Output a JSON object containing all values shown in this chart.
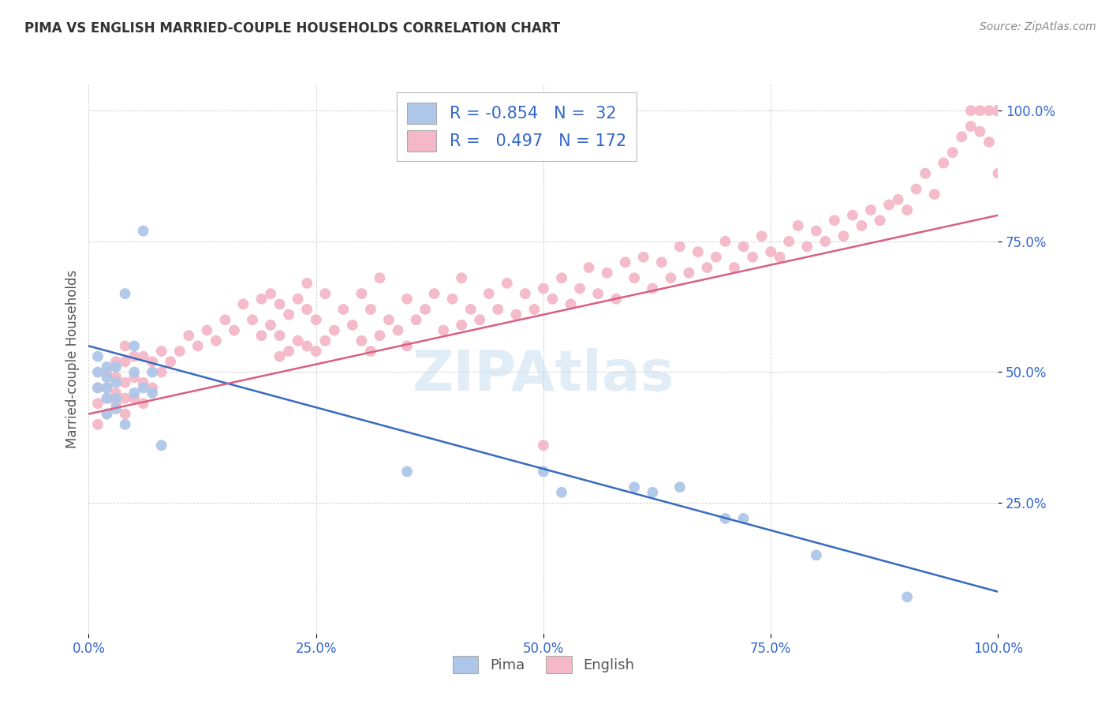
{
  "title": "PIMA VS ENGLISH MARRIED-COUPLE HOUSEHOLDS CORRELATION CHART",
  "source": "Source: ZipAtlas.com",
  "ylabel": "Married-couple Households",
  "watermark": "ZIPAtlas",
  "pima_R": -0.854,
  "pima_N": 32,
  "english_R": 0.497,
  "english_N": 172,
  "pima_color": "#aec6e8",
  "english_color": "#f4b8c8",
  "pima_line_color": "#3a6abf",
  "english_line_color": "#d96080",
  "pima_x": [
    0.01,
    0.01,
    0.01,
    0.02,
    0.02,
    0.02,
    0.02,
    0.02,
    0.03,
    0.03,
    0.03,
    0.03,
    0.04,
    0.04,
    0.05,
    0.05,
    0.05,
    0.06,
    0.06,
    0.07,
    0.07,
    0.08,
    0.35,
    0.5,
    0.52,
    0.6,
    0.62,
    0.65,
    0.7,
    0.72,
    0.8,
    0.9
  ],
  "pima_y": [
    0.47,
    0.5,
    0.53,
    0.45,
    0.47,
    0.49,
    0.51,
    0.42,
    0.48,
    0.51,
    0.45,
    0.43,
    0.4,
    0.65,
    0.46,
    0.5,
    0.55,
    0.77,
    0.47,
    0.46,
    0.5,
    0.36,
    0.31,
    0.31,
    0.27,
    0.28,
    0.27,
    0.28,
    0.22,
    0.22,
    0.15,
    0.07
  ],
  "english_x": [
    0.01,
    0.01,
    0.01,
    0.02,
    0.02,
    0.02,
    0.02,
    0.03,
    0.03,
    0.03,
    0.03,
    0.04,
    0.04,
    0.04,
    0.04,
    0.04,
    0.05,
    0.05,
    0.05,
    0.06,
    0.06,
    0.06,
    0.07,
    0.07,
    0.08,
    0.08,
    0.09,
    0.1,
    0.11,
    0.12,
    0.13,
    0.14,
    0.15,
    0.16,
    0.17,
    0.18,
    0.19,
    0.19,
    0.2,
    0.2,
    0.21,
    0.21,
    0.21,
    0.22,
    0.22,
    0.23,
    0.23,
    0.24,
    0.24,
    0.24,
    0.25,
    0.25,
    0.26,
    0.26,
    0.27,
    0.28,
    0.29,
    0.3,
    0.3,
    0.31,
    0.31,
    0.32,
    0.32,
    0.33,
    0.34,
    0.35,
    0.35,
    0.36,
    0.37,
    0.38,
    0.39,
    0.4,
    0.41,
    0.41,
    0.42,
    0.43,
    0.44,
    0.45,
    0.46,
    0.47,
    0.48,
    0.49,
    0.5,
    0.5,
    0.51,
    0.52,
    0.53,
    0.54,
    0.55,
    0.56,
    0.57,
    0.58,
    0.59,
    0.6,
    0.61,
    0.62,
    0.63,
    0.64,
    0.65,
    0.66,
    0.67,
    0.68,
    0.69,
    0.7,
    0.71,
    0.72,
    0.73,
    0.74,
    0.75,
    0.76,
    0.77,
    0.78,
    0.79,
    0.8,
    0.81,
    0.82,
    0.83,
    0.84,
    0.85,
    0.86,
    0.87,
    0.88,
    0.89,
    0.9,
    0.91,
    0.92,
    0.93,
    0.94,
    0.95,
    0.96,
    0.97,
    0.97,
    0.98,
    0.98,
    0.99,
    0.99,
    1.0,
    1.0,
    1.0,
    1.0,
    1.0,
    1.0,
    1.0,
    1.0,
    1.0,
    1.0,
    1.0,
    1.0,
    1.0,
    1.0,
    1.0,
    1.0,
    1.0,
    1.0,
    1.0,
    1.0,
    1.0,
    1.0,
    1.0,
    1.0,
    1.0,
    1.0,
    1.0,
    1.0,
    1.0,
    1.0,
    1.0,
    1.0,
    1.0,
    1.0,
    1.0
  ],
  "english_y": [
    0.4,
    0.44,
    0.47,
    0.42,
    0.45,
    0.47,
    0.5,
    0.44,
    0.46,
    0.49,
    0.52,
    0.42,
    0.45,
    0.48,
    0.52,
    0.55,
    0.45,
    0.49,
    0.53,
    0.44,
    0.48,
    0.53,
    0.47,
    0.52,
    0.5,
    0.54,
    0.52,
    0.54,
    0.57,
    0.55,
    0.58,
    0.56,
    0.6,
    0.58,
    0.63,
    0.6,
    0.57,
    0.64,
    0.59,
    0.65,
    0.53,
    0.57,
    0.63,
    0.54,
    0.61,
    0.56,
    0.64,
    0.55,
    0.62,
    0.67,
    0.54,
    0.6,
    0.56,
    0.65,
    0.58,
    0.62,
    0.59,
    0.56,
    0.65,
    0.54,
    0.62,
    0.57,
    0.68,
    0.6,
    0.58,
    0.55,
    0.64,
    0.6,
    0.62,
    0.65,
    0.58,
    0.64,
    0.59,
    0.68,
    0.62,
    0.6,
    0.65,
    0.62,
    0.67,
    0.61,
    0.65,
    0.62,
    0.36,
    0.66,
    0.64,
    0.68,
    0.63,
    0.66,
    0.7,
    0.65,
    0.69,
    0.64,
    0.71,
    0.68,
    0.72,
    0.66,
    0.71,
    0.68,
    0.74,
    0.69,
    0.73,
    0.7,
    0.72,
    0.75,
    0.7,
    0.74,
    0.72,
    0.76,
    0.73,
    0.72,
    0.75,
    0.78,
    0.74,
    0.77,
    0.75,
    0.79,
    0.76,
    0.8,
    0.78,
    0.81,
    0.79,
    0.82,
    0.83,
    0.81,
    0.85,
    0.88,
    0.84,
    0.9,
    0.92,
    0.95,
    0.97,
    1.0,
    0.96,
    1.0,
    0.94,
    1.0,
    1.0,
    1.0,
    1.0,
    1.0,
    1.0,
    1.0,
    1.0,
    1.0,
    1.0,
    1.0,
    1.0,
    1.0,
    1.0,
    1.0,
    1.0,
    1.0,
    1.0,
    1.0,
    1.0,
    1.0,
    1.0,
    1.0,
    1.0,
    1.0,
    1.0,
    1.0,
    1.0,
    1.0,
    1.0,
    1.0,
    1.0,
    1.0,
    1.0,
    1.0,
    0.88
  ],
  "xlim": [
    0.0,
    1.0
  ],
  "ylim": [
    0.0,
    1.05
  ],
  "xticks": [
    0.0,
    0.25,
    0.5,
    0.75,
    1.0
  ],
  "yticks": [
    0.25,
    0.5,
    0.75,
    1.0
  ],
  "xticklabels": [
    "0.0%",
    "25.0%",
    "50.0%",
    "75.0%",
    "100.0%"
  ],
  "yticklabels": [
    "25.0%",
    "50.0%",
    "75.0%",
    "100.0%"
  ],
  "pima_line_x0": 0.0,
  "pima_line_y0": 0.55,
  "pima_line_x1": 1.0,
  "pima_line_y1": 0.08,
  "english_line_x0": 0.0,
  "english_line_y0": 0.42,
  "english_line_x1": 1.0,
  "english_line_y1": 0.8,
  "background_color": "#ffffff",
  "grid_color": "#cccccc"
}
